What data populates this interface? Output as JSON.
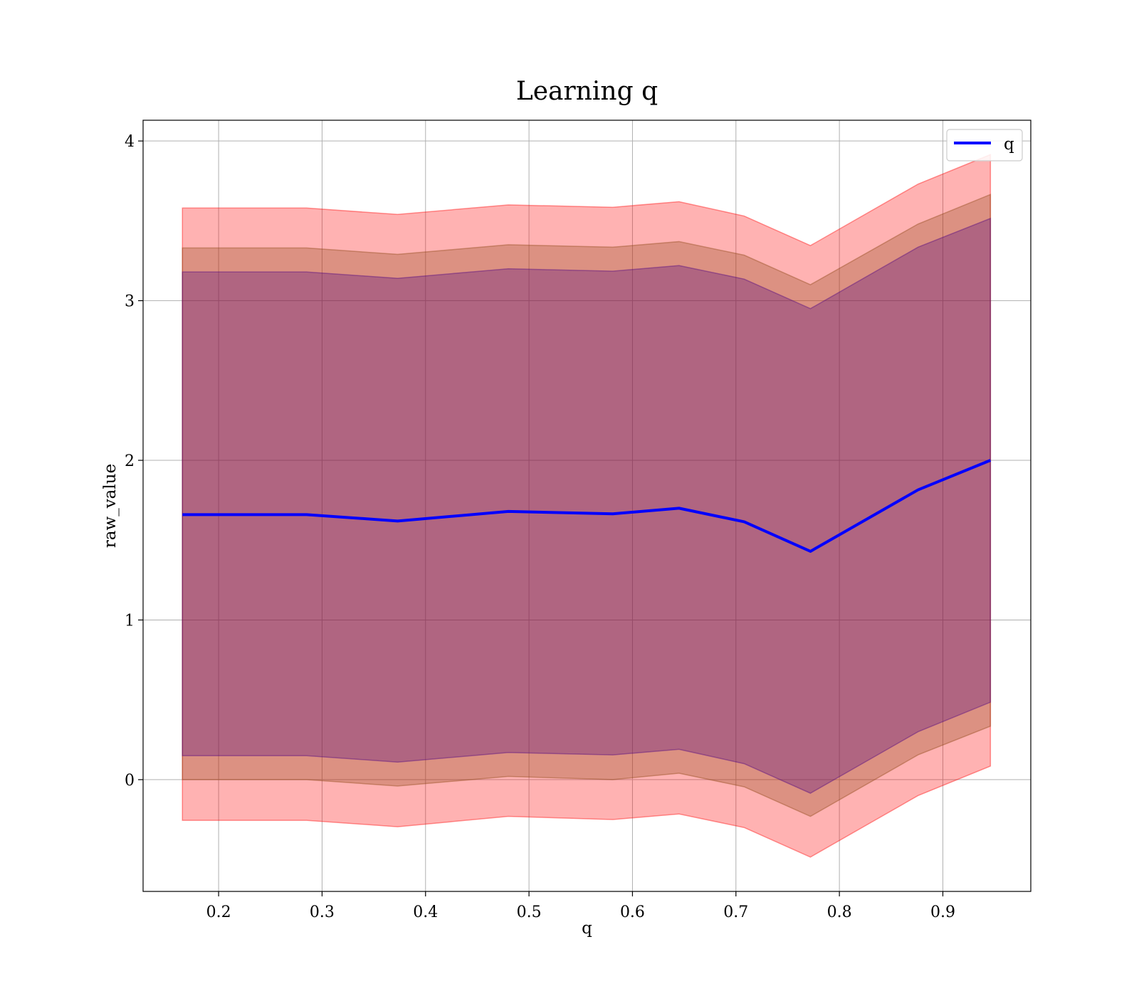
{
  "chart_data": {
    "type": "line",
    "title": "Learning q",
    "xlabel": "q",
    "ylabel": "raw_value",
    "xlim": [
      0.127,
      0.985
    ],
    "ylim": [
      -0.7,
      4.13
    ],
    "xticks": [
      "0.2",
      "0.3",
      "0.4",
      "0.5",
      "0.6",
      "0.7",
      "0.8",
      "0.9"
    ],
    "yticks": [
      "0",
      "1",
      "2",
      "3",
      "4"
    ],
    "grid": true,
    "legend_position": "top-right",
    "x": [
      0.165,
      0.285,
      0.373,
      0.48,
      0.581,
      0.645,
      0.708,
      0.772,
      0.876,
      0.946
    ],
    "series": [
      {
        "name": "q",
        "color": "#0000ff",
        "values": [
          1.66,
          1.66,
          1.62,
          1.68,
          1.665,
          1.7,
          1.615,
          1.43,
          1.815,
          2.0
        ]
      }
    ],
    "bands": [
      {
        "color": "#ff0000",
        "opacity": 0.3,
        "lower": [
          -0.255,
          -0.255,
          -0.295,
          -0.23,
          -0.25,
          -0.215,
          -0.3,
          -0.485,
          -0.1,
          0.085
        ],
        "upper": [
          3.58,
          3.58,
          3.54,
          3.6,
          3.585,
          3.62,
          3.53,
          3.345,
          3.73,
          3.915
        ]
      },
      {
        "color": "#8b4513",
        "opacity": 0.3,
        "lower": [
          0.0,
          0.0,
          -0.04,
          0.02,
          0.0,
          0.04,
          -0.045,
          -0.23,
          0.155,
          0.335
        ],
        "upper": [
          3.33,
          3.33,
          3.29,
          3.35,
          3.335,
          3.37,
          3.285,
          3.1,
          3.48,
          3.665
        ]
      },
      {
        "color": "#4b0082",
        "opacity": 0.3,
        "lower": [
          0.15,
          0.15,
          0.11,
          0.17,
          0.155,
          0.19,
          0.1,
          -0.085,
          0.3,
          0.485
        ],
        "upper": [
          3.18,
          3.18,
          3.14,
          3.2,
          3.185,
          3.22,
          3.135,
          2.95,
          3.335,
          3.515
        ]
      }
    ]
  }
}
